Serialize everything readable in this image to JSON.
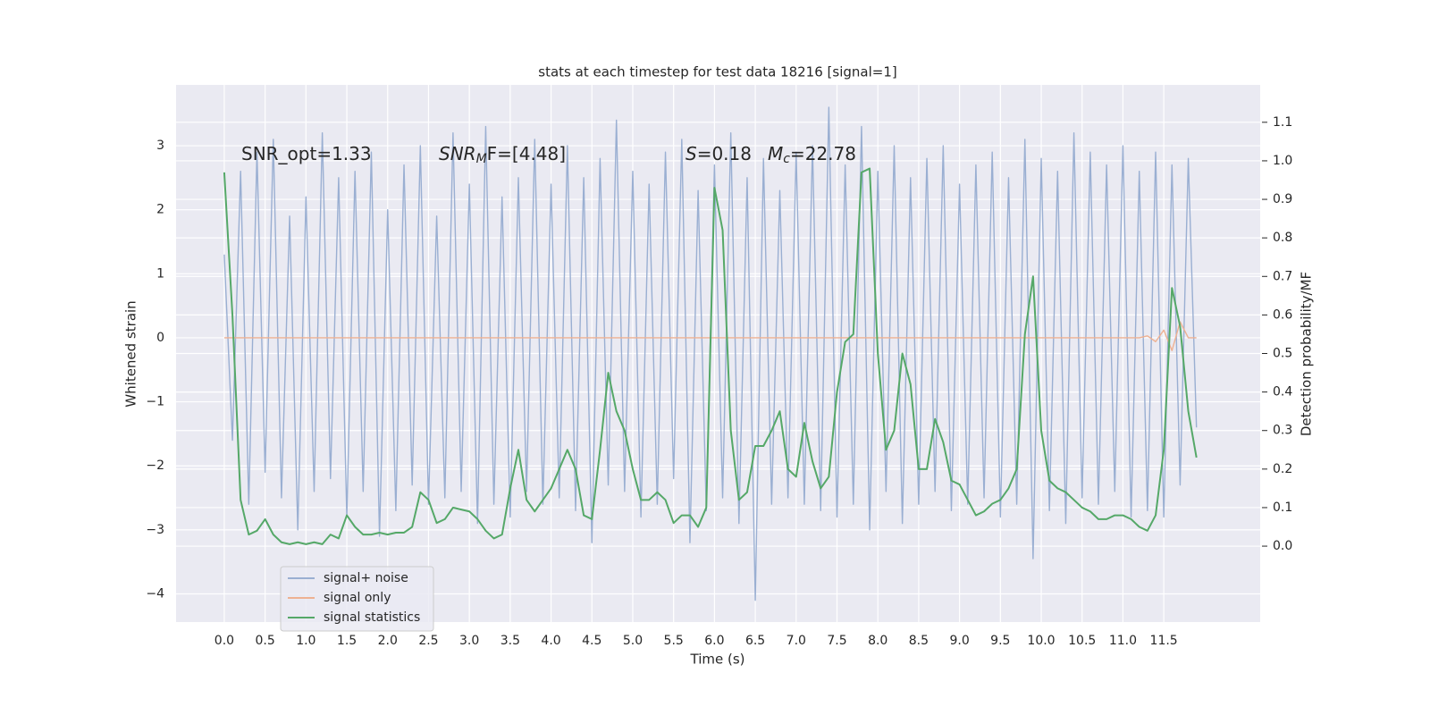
{
  "chart_data": {
    "type": "line",
    "title": "stats at each timestep for test data 18216 [signal=1]",
    "xlabel": "Time (s)",
    "ylabel": "Whitened strain",
    "y2label": "Detection probability/MF",
    "annotations": [
      {
        "text": "SNR_opt=1.33"
      },
      {
        "italic": "SNR",
        "sub": "M",
        "text": "F=[4.48]"
      },
      {
        "italic": "S",
        "text": "=0.18"
      },
      {
        "italic": "M",
        "sub": "c",
        "text": "=22.78"
      }
    ],
    "grid": true,
    "legend": "lower left",
    "xlim": [
      -0.59,
      12.68
    ],
    "ylim": [
      -4.44,
      3.95
    ],
    "y2lim": [
      -0.197,
      1.197
    ],
    "xticks": [
      {
        "value": 0,
        "label": "0.0"
      },
      {
        "value": 0.5,
        "label": "0.5"
      },
      {
        "value": 1,
        "label": "1.0"
      },
      {
        "value": 1.5,
        "label": "1.5"
      },
      {
        "value": 2,
        "label": "2.0"
      },
      {
        "value": 2.5,
        "label": "2.5"
      },
      {
        "value": 3,
        "label": "3.0"
      },
      {
        "value": 3.5,
        "label": "3.5"
      },
      {
        "value": 4,
        "label": "4.0"
      },
      {
        "value": 4.5,
        "label": "4.5"
      },
      {
        "value": 5,
        "label": "5.0"
      },
      {
        "value": 5.5,
        "label": "5.5"
      },
      {
        "value": 6,
        "label": "6.0"
      },
      {
        "value": 6.5,
        "label": "6.5"
      },
      {
        "value": 7,
        "label": "7.0"
      },
      {
        "value": 7.5,
        "label": "7.5"
      },
      {
        "value": 8,
        "label": "8.0"
      },
      {
        "value": 8.5,
        "label": "8.5"
      },
      {
        "value": 9,
        "label": "9.0"
      },
      {
        "value": 9.5,
        "label": "9.5"
      },
      {
        "value": 10,
        "label": "10.0"
      },
      {
        "value": 10.5,
        "label": "10.5"
      },
      {
        "value": 11,
        "label": "11.0"
      },
      {
        "value": 11.5,
        "label": "11.5"
      }
    ],
    "yticks": [
      {
        "value": -4,
        "label": "−4"
      },
      {
        "value": -3,
        "label": "−3"
      },
      {
        "value": -2,
        "label": "−2"
      },
      {
        "value": -1,
        "label": "−1"
      },
      0,
      1,
      2,
      3
    ],
    "y2ticks": [
      {
        "value": 0,
        "label": "0.0"
      },
      {
        "value": 0.1,
        "label": "0.1"
      },
      {
        "value": 0.2,
        "label": "0.2"
      },
      {
        "value": 0.3,
        "label": "0.3"
      },
      {
        "value": 0.4,
        "label": "0.4"
      },
      {
        "value": 0.5,
        "label": "0.5"
      },
      {
        "value": 0.6,
        "label": "0.6"
      },
      {
        "value": 0.7,
        "label": "0.7"
      },
      {
        "value": 0.8,
        "label": "0.8"
      },
      {
        "value": 0.9,
        "label": "0.9"
      },
      {
        "value": 1,
        "label": "1.0"
      },
      {
        "value": 1.1,
        "label": "1.1"
      }
    ],
    "x": [
      0,
      0.1,
      0.2,
      0.3,
      0.4,
      0.5,
      0.6,
      0.7,
      0.8,
      0.9,
      1,
      1.1,
      1.2,
      1.3,
      1.4,
      1.5,
      1.6,
      1.7,
      1.8,
      1.9,
      2,
      2.1,
      2.2,
      2.3,
      2.4,
      2.5,
      2.6,
      2.7,
      2.8,
      2.9,
      3,
      3.1,
      3.2,
      3.3,
      3.4,
      3.5,
      3.6,
      3.7,
      3.8,
      3.9,
      4,
      4.1,
      4.2,
      4.3,
      4.4,
      4.5,
      4.6,
      4.7,
      4.8,
      4.9,
      5,
      5.1,
      5.2,
      5.3,
      5.4,
      5.5,
      5.6,
      5.7,
      5.8,
      5.9,
      6,
      6.1,
      6.2,
      6.3,
      6.4,
      6.5,
      6.6,
      6.7,
      6.8,
      6.9,
      7,
      7.1,
      7.2,
      7.3,
      7.4,
      7.5,
      7.6,
      7.7,
      7.8,
      7.9,
      8,
      8.1,
      8.2,
      8.3,
      8.4,
      8.5,
      8.6,
      8.7,
      8.8,
      8.9,
      9,
      9.1,
      9.2,
      9.3,
      9.4,
      9.5,
      9.6,
      9.7,
      9.8,
      9.9,
      10,
      10.1,
      10.2,
      10.3,
      10.4,
      10.5,
      10.6,
      10.7,
      10.8,
      10.9,
      11,
      11.1,
      11.2,
      11.3,
      11.4,
      11.5,
      11.6,
      11.7,
      11.8,
      11.9
    ],
    "series": [
      {
        "name": "signal+ noise",
        "color": "#9aafd2",
        "values": [
          1.3,
          -1.6,
          2.6,
          -2.6,
          2.9,
          -2.1,
          3.1,
          -2.5,
          1.9,
          -3.0,
          2.2,
          -2.4,
          3.2,
          -2.2,
          2.5,
          -2.8,
          2.6,
          -2.4,
          2.9,
          -3.1,
          2.0,
          -2.7,
          2.7,
          -2.3,
          3.0,
          -2.6,
          1.9,
          -2.5,
          3.2,
          -2.4,
          2.4,
          -2.9,
          3.3,
          -2.6,
          2.2,
          -2.8,
          2.5,
          -2.4,
          3.1,
          -2.6,
          2.4,
          -2.5,
          3.0,
          -2.7,
          2.5,
          -3.2,
          2.8,
          -2.3,
          3.4,
          -2.4,
          2.6,
          -2.8,
          2.4,
          -2.6,
          2.9,
          -2.2,
          3.1,
          -3.2,
          2.3,
          -2.7,
          2.7,
          -2.5,
          3.2,
          -2.9,
          2.5,
          -4.1,
          2.8,
          -2.6,
          2.3,
          -2.5,
          2.9,
          -2.6,
          3.0,
          -2.7,
          3.6,
          -2.8,
          2.7,
          -2.6,
          3.3,
          -3.0,
          2.6,
          -2.4,
          3.0,
          -2.9,
          2.5,
          -2.6,
          2.8,
          -2.4,
          3.0,
          -2.7,
          2.4,
          -2.6,
          2.7,
          -2.5,
          2.9,
          -2.8,
          2.5,
          -2.6,
          3.1,
          -3.45,
          2.8,
          -2.7,
          2.6,
          -2.9,
          3.2,
          -2.5,
          2.9,
          -2.6,
          2.7,
          -2.4,
          3.0,
          -2.8,
          2.6,
          -2.7,
          2.9,
          -2.8,
          2.7,
          -2.3,
          2.8,
          -1.4
        ]
      },
      {
        "name": "signal only",
        "color": "#eeb192",
        "values": [
          0,
          0,
          0,
          0,
          0,
          0,
          0,
          0,
          0,
          0,
          0,
          0,
          0,
          0,
          0,
          0,
          0,
          0,
          0,
          0,
          0,
          0,
          0,
          0,
          0,
          0,
          0,
          0,
          0,
          0,
          0,
          0,
          0,
          0,
          0,
          0,
          0,
          0,
          0,
          0,
          0,
          0,
          0,
          0,
          0,
          0,
          0,
          0,
          0,
          0,
          0,
          0,
          0,
          0,
          0,
          0,
          0,
          0,
          0,
          0,
          0,
          0,
          0,
          0,
          0,
          0,
          0,
          0,
          0,
          0,
          0,
          0,
          0,
          0,
          0,
          0,
          0,
          0,
          0,
          0,
          0,
          0,
          0,
          0,
          0,
          0,
          0,
          0,
          0,
          0,
          0,
          0,
          0,
          0,
          0,
          0,
          0,
          0,
          0,
          0,
          0,
          0,
          0,
          0,
          0,
          0,
          0,
          0,
          0,
          0,
          0,
          0,
          0,
          0.03,
          -0.06,
          0.12,
          -0.2,
          0.25,
          0,
          0
        ]
      },
      {
        "name": "signal statistics",
        "color": "#55a868",
        "axis": "y2",
        "values": [
          0.97,
          0.6,
          0.12,
          0.03,
          0.04,
          0.07,
          0.03,
          0.01,
          0.005,
          0.01,
          0.005,
          0.01,
          0.005,
          0.03,
          0.02,
          0.08,
          0.05,
          0.03,
          0.03,
          0.035,
          0.03,
          0.035,
          0.035,
          0.05,
          0.14,
          0.12,
          0.06,
          0.07,
          0.1,
          0.095,
          0.09,
          0.07,
          0.04,
          0.02,
          0.03,
          0.15,
          0.25,
          0.12,
          0.09,
          0.12,
          0.15,
          0.2,
          0.25,
          0.2,
          0.08,
          0.07,
          0.25,
          0.45,
          0.35,
          0.3,
          0.2,
          0.12,
          0.12,
          0.14,
          0.12,
          0.06,
          0.08,
          0.08,
          0.05,
          0.1,
          0.93,
          0.82,
          0.3,
          0.12,
          0.14,
          0.26,
          0.26,
          0.3,
          0.35,
          0.2,
          0.18,
          0.32,
          0.22,
          0.15,
          0.18,
          0.4,
          0.53,
          0.55,
          0.97,
          0.98,
          0.5,
          0.25,
          0.3,
          0.5,
          0.42,
          0.2,
          0.2,
          0.33,
          0.27,
          0.17,
          0.16,
          0.12,
          0.08,
          0.09,
          0.11,
          0.12,
          0.15,
          0.2,
          0.55,
          0.7,
          0.3,
          0.17,
          0.15,
          0.14,
          0.12,
          0.1,
          0.09,
          0.07,
          0.07,
          0.08,
          0.08,
          0.07,
          0.05,
          0.04,
          0.08,
          0.25,
          0.67,
          0.57,
          0.35,
          0.23
        ]
      }
    ]
  }
}
